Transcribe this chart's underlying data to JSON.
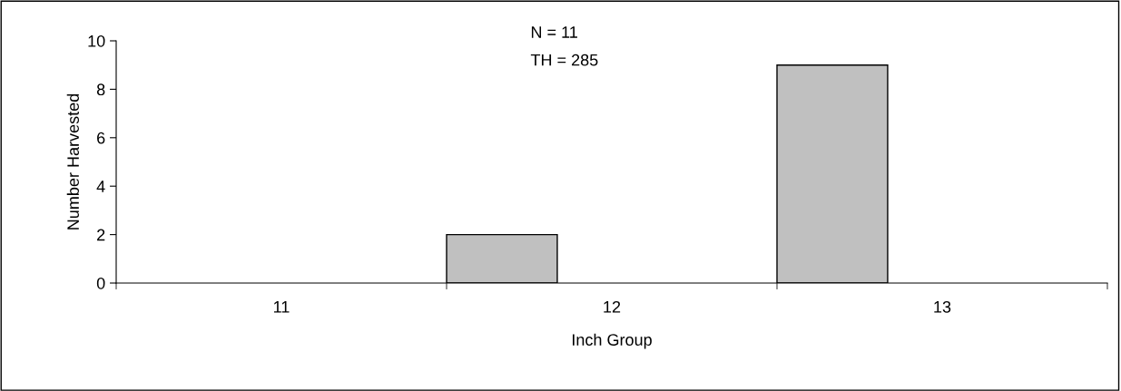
{
  "chart_data": {
    "type": "bar",
    "xlabel": "Inch Group",
    "ylabel": "Number Harvested",
    "categories": [
      "11",
      "12",
      "13"
    ],
    "values": [
      0,
      2,
      9
    ],
    "color": "#c0c0c0",
    "ylim": [
      0,
      10
    ],
    "yticks": [
      0,
      2,
      4,
      6,
      8,
      10
    ],
    "grid": false,
    "annotations": [
      "N = 11",
      "TH = 285"
    ]
  }
}
